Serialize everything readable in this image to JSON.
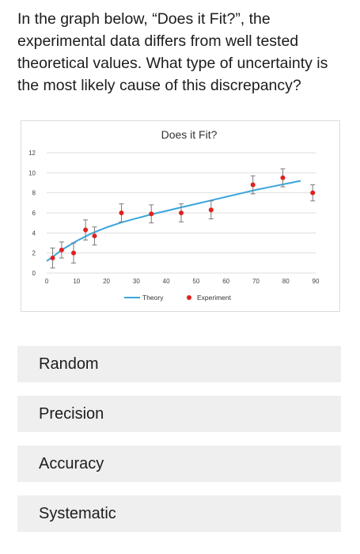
{
  "question": "In the graph below, “Does it Fit?”, the experimental data differs from well tested theoretical values. What type of uncertainty is the most likely cause of this discrepancy?",
  "chart_data": {
    "type": "scatter",
    "title": "Does it Fit?",
    "xlim": [
      0,
      90
    ],
    "ylim": [
      0,
      12
    ],
    "xticks": [
      "0",
      "10",
      "20",
      "30",
      "40",
      "50",
      "60",
      "70",
      "80",
      "90"
    ],
    "yticks": [
      "0",
      "2",
      "4",
      "6",
      "8",
      "10",
      "12"
    ],
    "grid": true,
    "legend_position": "bottom",
    "series": [
      {
        "name": "Theory",
        "kind": "line",
        "color": "#3aa6dc",
        "x": [
          0,
          2,
          5,
          10,
          15,
          20,
          25,
          30,
          35,
          40,
          45,
          50,
          55,
          60,
          65,
          70,
          75,
          80,
          85
        ],
        "y": [
          1.2,
          1.6,
          2.3,
          3.2,
          3.95,
          4.55,
          5.05,
          5.45,
          5.85,
          6.2,
          6.55,
          6.9,
          7.25,
          7.6,
          7.95,
          8.3,
          8.6,
          8.9,
          9.2
        ]
      },
      {
        "name": "Experiment",
        "kind": "points",
        "color": "#e0211f",
        "error_color": "#7a7a7a",
        "x": [
          2,
          5,
          9,
          13,
          16,
          25,
          35,
          45,
          55,
          69,
          79,
          89
        ],
        "y": [
          1.5,
          2.3,
          2.0,
          4.3,
          3.7,
          6.0,
          5.9,
          6.0,
          6.3,
          8.8,
          9.5,
          8.0
        ],
        "err": [
          1.0,
          0.8,
          1.0,
          1.0,
          0.9,
          0.9,
          0.9,
          0.9,
          0.9,
          0.9,
          0.9,
          0.8
        ]
      }
    ]
  },
  "options": [
    {
      "label": "Random"
    },
    {
      "label": "Precision"
    },
    {
      "label": "Accuracy"
    },
    {
      "label": "Systematic"
    }
  ]
}
